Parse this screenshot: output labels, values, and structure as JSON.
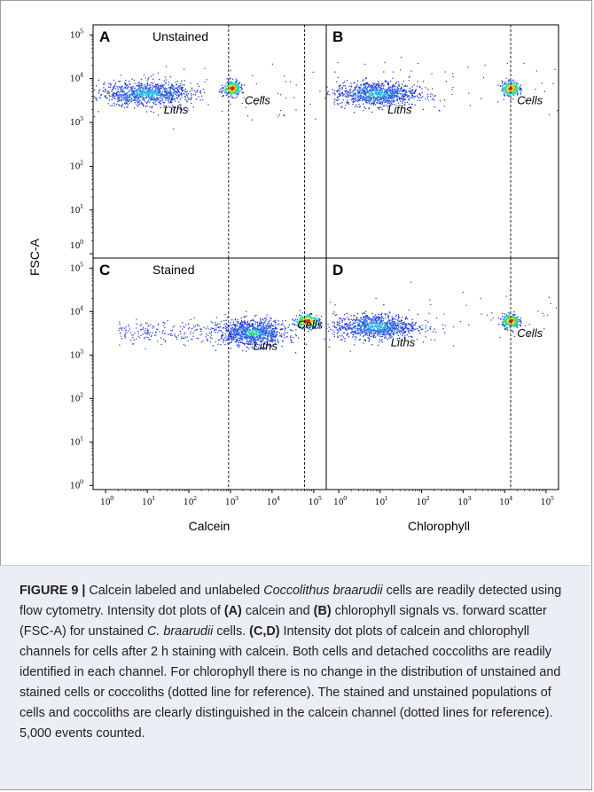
{
  "figure": {
    "x_axis_titles": [
      "Calcein",
      "Chlorophyll"
    ],
    "y_axis_title": "FSC-A"
  },
  "chart_data": {
    "type": "scatter",
    "x_scale": "log",
    "y_scale": "log",
    "xlim": [
      0.5,
      200000
    ],
    "ylim": [
      0.8,
      170000
    ],
    "x_ticks": [
      1,
      10,
      100,
      1000,
      10000,
      100000
    ],
    "y_ticks": [
      1,
      10,
      100,
      1000,
      10000,
      100000
    ],
    "tick_base": "10",
    "tick_exponents": [
      "0",
      "1",
      "2",
      "3",
      "4",
      "5"
    ],
    "panels": [
      {
        "letter": "A",
        "label": "Unstained",
        "xlabel": "Calcein",
        "ylabel": "FSC-A",
        "gates_x": [
          900,
          60000
        ],
        "populations": [
          {
            "name": "Liths",
            "center_x": 10,
            "center_y": 4500,
            "spread_x_decades": 0.55,
            "spread_y_decades": 0.14,
            "label_at": [
              25,
              1600
            ]
          },
          {
            "name": "Cells",
            "center_x": 1100,
            "center_y": 6000,
            "spread_x_decades": 0.1,
            "spread_y_decades": 0.08,
            "label_at": [
              2200,
              2600
            ]
          }
        ]
      },
      {
        "letter": "B",
        "label": "",
        "xlabel": "Chlorophyll",
        "ylabel": "FSC-A",
        "gates_x": [
          14000
        ],
        "populations": [
          {
            "name": "Liths",
            "center_x": 8,
            "center_y": 4500,
            "spread_x_decades": 0.5,
            "spread_y_decades": 0.14,
            "label_at": [
              15,
              1600
            ]
          },
          {
            "name": "Cells",
            "center_x": 14000,
            "center_y": 6000,
            "spread_x_decades": 0.1,
            "spread_y_decades": 0.08,
            "label_at": [
              20000,
              2600
            ]
          }
        ]
      },
      {
        "letter": "C",
        "label": "Stained",
        "xlabel": "Calcein",
        "ylabel": "FSC-A",
        "gates_x": [
          900,
          60000
        ],
        "populations": [
          {
            "name": "Liths",
            "center_x": 3500,
            "center_y": 3200,
            "spread_x_decades": 0.4,
            "spread_y_decades": 0.15,
            "label_at": [
              3500,
              1300
            ]
          },
          {
            "name": "Cells",
            "center_x": 70000,
            "center_y": 6000,
            "spread_x_decades": 0.14,
            "spread_y_decades": 0.08,
            "label_at": [
              40000,
              4100
            ]
          }
        ]
      },
      {
        "letter": "D",
        "label": "",
        "xlabel": "Chlorophyll",
        "ylabel": "FSC-A",
        "gates_x": [
          14000
        ],
        "populations": [
          {
            "name": "Liths",
            "center_x": 8,
            "center_y": 4500,
            "spread_x_decades": 0.5,
            "spread_y_decades": 0.14,
            "label_at": [
              18,
              1600
            ]
          },
          {
            "name": "Cells",
            "center_x": 14000,
            "center_y": 6000,
            "spread_x_decades": 0.1,
            "spread_y_decades": 0.08,
            "label_at": [
              20000,
              2600
            ]
          }
        ]
      }
    ],
    "events_counted": 5000,
    "colors": {
      "low_density": "#1f38d6",
      "mid_density": "#16c5e0",
      "high_density": "#e81a1a",
      "gate_line": "#222222"
    }
  },
  "caption": {
    "figure_label": "FIGURE 9 |",
    "t1": " Calcein labeled and unlabeled ",
    "species": "Coccolithus braarudii",
    "t2": " cells are readily detected using flow cytometry. Intensity dot plots of ",
    "refA": "(A)",
    "t3": " calcein and ",
    "refB": "(B)",
    "t4": " chlorophyll signals vs. forward scatter (FSC-A) for unstained ",
    "species_short": "C. braarudii",
    "t5": " cells. ",
    "refCD": "(C,D)",
    "t6": " Intensity dot plots of calcein and chlorophyll channels for cells after 2 h staining with calcein. Both cells and detached coccoliths are readily identified in each channel. For chlorophyll there is no change in the distribution of unstained and stained cells or coccoliths (dotted line for reference). The stained and unstained populations of cells and coccoliths are clearly distinguished in the calcein channel (dotted lines for reference). 5,000 events counted."
  }
}
